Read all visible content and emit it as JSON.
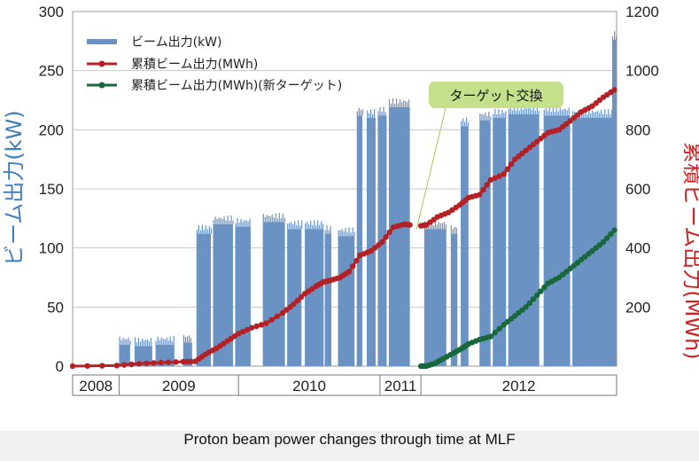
{
  "caption": "Proton beam power changes through time at MLF",
  "colors": {
    "bar": "#6a93c4",
    "red": "#b52025",
    "green": "#17683a",
    "callout": "#c4e08a"
  },
  "chart_data": {
    "type": "bar",
    "ylabel_left": "ビーム出力(kW)",
    "ylabel_right": "累積ビーム出力(MWh)",
    "y_left": {
      "min": 0,
      "max": 300,
      "ticks": [
        "0",
        "50",
        "100",
        "150",
        "200",
        "250",
        "300"
      ]
    },
    "y_right": {
      "min": 0,
      "max": 1200,
      "ticks": [
        "200",
        "400",
        "600",
        "800",
        "1000",
        "1200"
      ]
    },
    "x_range": [
      2008.0,
      2012.92
    ],
    "years": [
      {
        "label": "2008",
        "start": 2008.0,
        "end": 2008.42
      },
      {
        "label": "2009",
        "start": 2008.42,
        "end": 2009.5
      },
      {
        "label": "2010",
        "start": 2009.5,
        "end": 2010.78
      },
      {
        "label": "2011",
        "start": 2010.78,
        "end": 2011.15
      },
      {
        "label": "2012",
        "start": 2011.15,
        "end": 2012.92
      }
    ],
    "legend": [
      {
        "label": "ビーム出力(kW)",
        "kind": "bar"
      },
      {
        "label": "累積ビーム出力(MWh)",
        "kind": "red"
      },
      {
        "label": "累積ビーム出力(MWh)(新ターゲット)",
        "kind": "green"
      }
    ],
    "annotation": {
      "label": "ターゲット交換",
      "x": 2011.11,
      "y_mwh": 475
    },
    "beam_blocks": [
      {
        "start": 2008.42,
        "end": 2008.52,
        "kw": 18
      },
      {
        "start": 2008.56,
        "end": 2008.72,
        "kw": 17
      },
      {
        "start": 2008.75,
        "end": 2008.92,
        "kw": 18
      },
      {
        "start": 2009.0,
        "end": 2009.08,
        "kw": 20
      },
      {
        "start": 2009.12,
        "end": 2009.25,
        "kw": 112
      },
      {
        "start": 2009.27,
        "end": 2009.45,
        "kw": 120
      },
      {
        "start": 2009.47,
        "end": 2009.61,
        "kw": 118
      },
      {
        "start": 2009.72,
        "end": 2009.92,
        "kw": 122
      },
      {
        "start": 2009.94,
        "end": 2010.07,
        "kw": 116
      },
      {
        "start": 2010.1,
        "end": 2010.27,
        "kw": 116
      },
      {
        "start": 2010.28,
        "end": 2010.34,
        "kw": 112
      },
      {
        "start": 2010.4,
        "end": 2010.55,
        "kw": 110
      },
      {
        "start": 2010.57,
        "end": 2010.62,
        "kw": 212
      },
      {
        "start": 2010.66,
        "end": 2010.74,
        "kw": 210
      },
      {
        "start": 2010.76,
        "end": 2010.84,
        "kw": 212
      },
      {
        "start": 2010.86,
        "end": 2011.05,
        "kw": 219
      },
      {
        "start": 2011.18,
        "end": 2011.38,
        "kw": 116
      },
      {
        "start": 2011.42,
        "end": 2011.48,
        "kw": 112
      },
      {
        "start": 2011.51,
        "end": 2011.58,
        "kw": 203
      },
      {
        "start": 2011.68,
        "end": 2011.78,
        "kw": 208
      },
      {
        "start": 2011.8,
        "end": 2011.92,
        "kw": 210
      },
      {
        "start": 2011.94,
        "end": 2012.22,
        "kw": 213
      },
      {
        "start": 2012.26,
        "end": 2012.5,
        "kw": 212
      },
      {
        "start": 2012.52,
        "end": 2012.88,
        "kw": 210
      },
      {
        "start": 2012.88,
        "end": 2012.92,
        "kw": 276
      }
    ],
    "series": [
      {
        "name": "累積ビーム出力(MWh)",
        "x": [
          2008.0,
          2008.4,
          2008.6,
          2008.8,
          2009.0,
          2009.11,
          2009.2,
          2009.3,
          2009.4,
          2009.5,
          2009.62,
          2009.75,
          2009.9,
          2010.0,
          2010.1,
          2010.2,
          2010.27,
          2010.33,
          2010.42,
          2010.5,
          2010.6,
          2010.7,
          2010.8,
          2010.9,
          2011.0,
          2011.05
        ],
        "y": [
          0,
          2,
          8,
          12,
          15,
          16,
          40,
          60,
          85,
          110,
          130,
          145,
          180,
          210,
          245,
          270,
          285,
          290,
          300,
          320,
          375,
          390,
          420,
          470,
          480,
          478
        ]
      },
      {
        "name": "累積ビーム出力(MWh)",
        "x": [
          2011.15,
          2011.2,
          2011.3,
          2011.4,
          2011.5,
          2011.58,
          2011.68,
          2011.78,
          2011.9,
          2012.0,
          2012.1,
          2012.2,
          2012.3,
          2012.4,
          2012.5,
          2012.6,
          2012.7,
          2012.8,
          2012.9
        ],
        "y": [
          475,
          478,
          505,
          520,
          545,
          570,
          580,
          630,
          650,
          700,
          730,
          760,
          790,
          800,
          830,
          860,
          880,
          910,
          935
        ]
      },
      {
        "name": "累積ビーム出力(MWh)(新ターゲット)",
        "x": [
          2011.15,
          2011.2,
          2011.28,
          2011.35,
          2011.45,
          2011.52,
          2011.58,
          2011.68,
          2011.78,
          2011.9,
          2012.0,
          2012.1,
          2012.2,
          2012.3,
          2012.4,
          2012.5,
          2012.6,
          2012.7,
          2012.8,
          2012.9
        ],
        "y": [
          0,
          0,
          10,
          25,
          45,
          60,
          75,
          90,
          100,
          140,
          170,
          200,
          240,
          280,
          300,
          330,
          360,
          390,
          420,
          460
        ]
      }
    ]
  }
}
